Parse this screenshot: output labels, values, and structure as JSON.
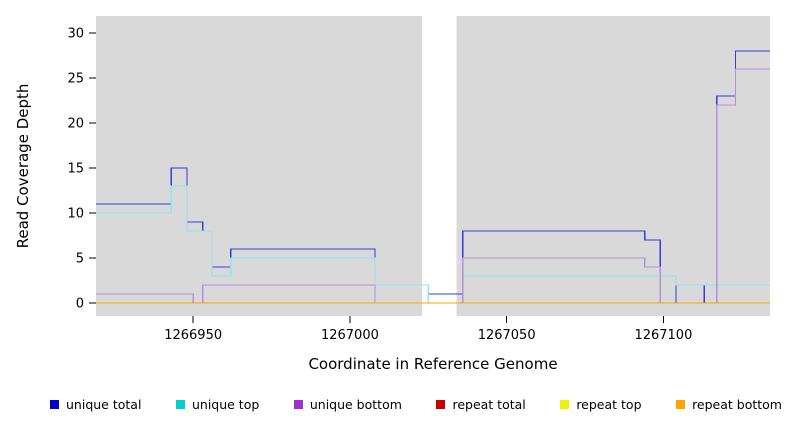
{
  "figure": {
    "background": "#FFFFFF"
  },
  "chart_data": {
    "type": "line",
    "subtype": "step-coverage",
    "title": "",
    "xlabel": "Coordinate in Reference Genome",
    "ylabel": "Read Coverage Depth",
    "xlim": [
      1266919,
      1267134
    ],
    "ylim": [
      0,
      33
    ],
    "xticks": [
      1266950,
      1267000,
      1267050,
      1267100
    ],
    "yticks": [
      0,
      5,
      10,
      15,
      20,
      25,
      30
    ],
    "grid": false,
    "panel_background": "#D9D9D9",
    "masked_region": {
      "x_start": 1267023,
      "x_end": 1267034,
      "color": "#FFFFFF"
    },
    "legend_position": "bottom",
    "series": [
      {
        "name": "unique total",
        "legend_color": "#0000C8",
        "line_color": "#3A3AE0",
        "steps": [
          [
            1266919,
            11
          ],
          [
            1266943,
            15
          ],
          [
            1266948,
            9
          ],
          [
            1266953,
            8
          ],
          [
            1266956,
            4
          ],
          [
            1266962,
            6
          ],
          [
            1267008,
            2
          ],
          [
            1267025,
            1
          ],
          [
            1267036,
            8
          ],
          [
            1267094,
            7
          ],
          [
            1267099,
            3
          ],
          [
            1267104,
            0
          ],
          [
            1267113,
            2
          ],
          [
            1267117,
            23
          ],
          [
            1267123,
            28
          ]
        ]
      },
      {
        "name": "unique top",
        "legend_color": "#00CED1",
        "line_color": "#8CE8EC",
        "steps": [
          [
            1266919,
            10
          ],
          [
            1266943,
            13
          ],
          [
            1266948,
            8
          ],
          [
            1266956,
            3
          ],
          [
            1266962,
            5
          ],
          [
            1267008,
            2
          ],
          [
            1267025,
            0
          ],
          [
            1267036,
            3
          ],
          [
            1267104,
            2
          ]
        ]
      },
      {
        "name": "unique bottom",
        "legend_color": "#9932CC",
        "line_color": "#B48FDE",
        "steps": [
          [
            1266919,
            1
          ],
          [
            1266950,
            0
          ],
          [
            1266953,
            2
          ],
          [
            1267008,
            0
          ],
          [
            1267036,
            5
          ],
          [
            1267094,
            4
          ],
          [
            1267099,
            0
          ],
          [
            1267117,
            22
          ],
          [
            1267123,
            26
          ]
        ]
      },
      {
        "name": "repeat total",
        "legend_color": "#C80000",
        "line_color": "#C80000",
        "steps": [
          [
            1266919,
            0
          ]
        ]
      },
      {
        "name": "repeat top",
        "legend_color": "#F0F000",
        "line_color": "#F0F000",
        "steps": [
          [
            1266919,
            0
          ]
        ]
      },
      {
        "name": "repeat bottom",
        "legend_color": "#FFA500",
        "line_color": "#FFA500",
        "steps": [
          [
            1266919,
            0
          ]
        ]
      }
    ]
  }
}
